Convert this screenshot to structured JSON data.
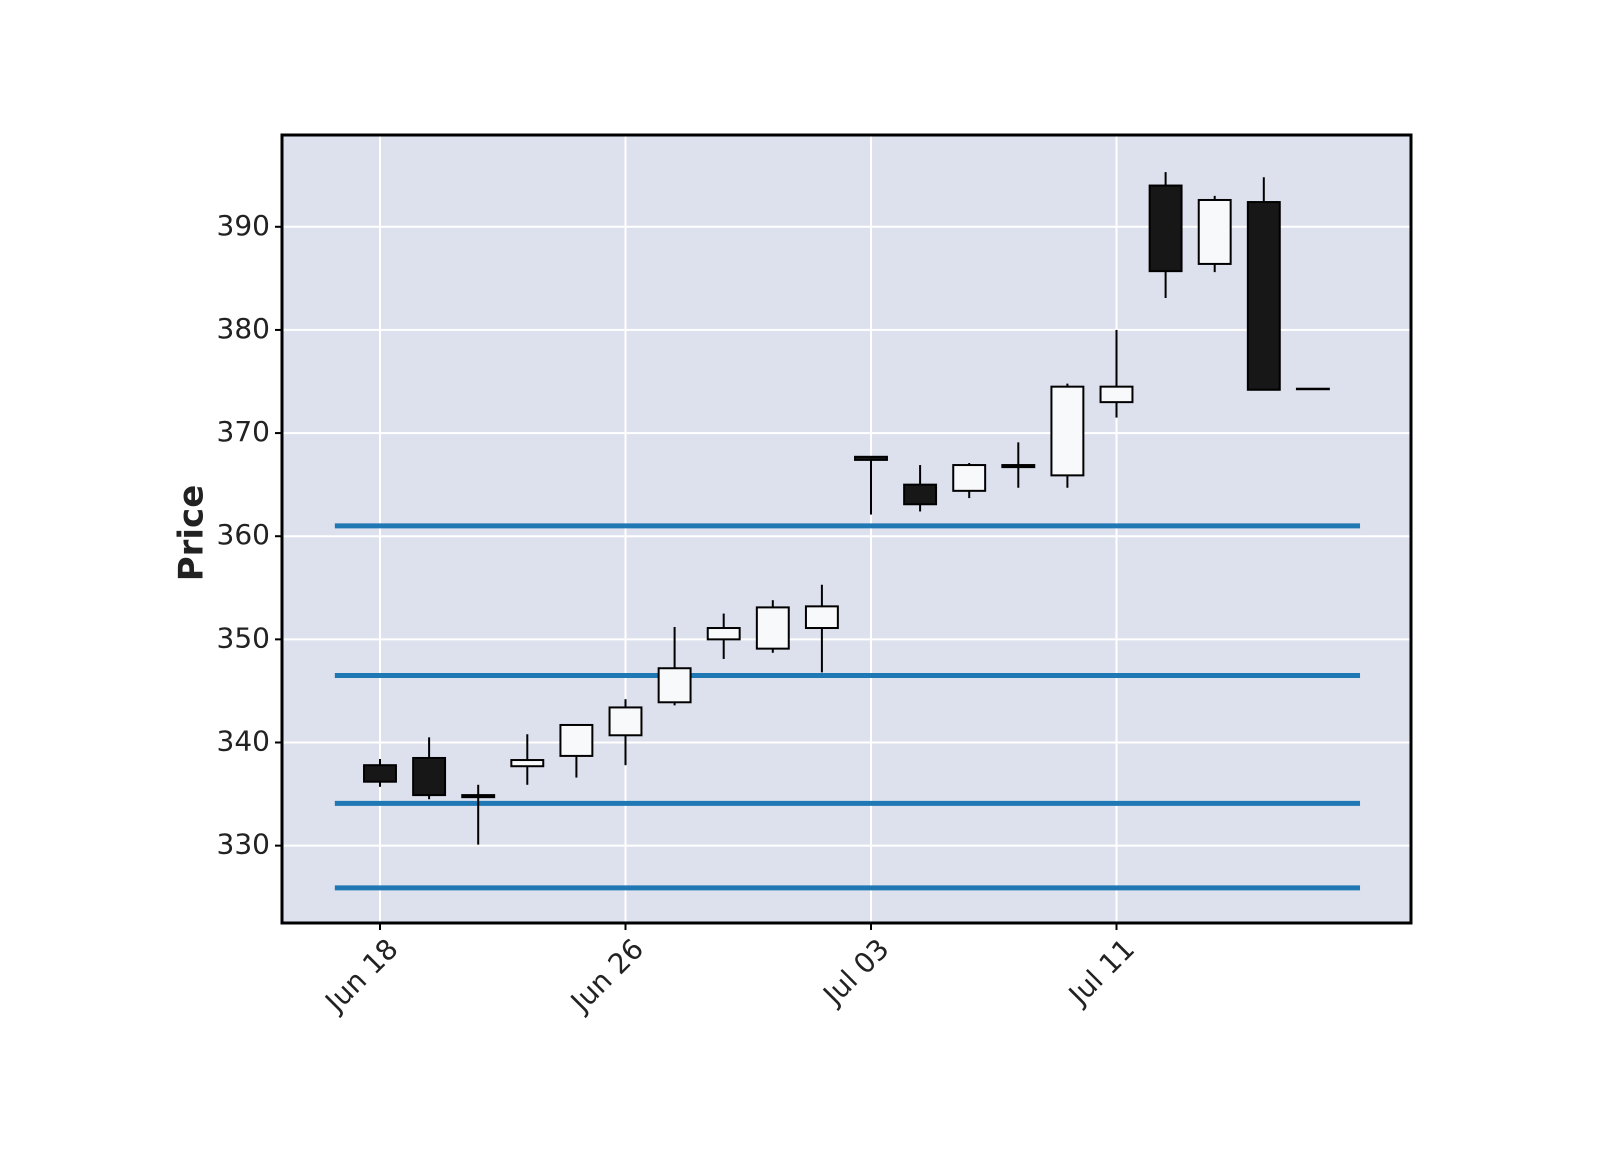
{
  "chart_data": {
    "type": "candlestick",
    "ylabel": "Price",
    "categories": [
      "Jun 18",
      null,
      null,
      null,
      null,
      "Jun 26",
      null,
      null,
      null,
      null,
      "Jul 03",
      null,
      null,
      null,
      null,
      "Jul 11",
      null,
      null,
      null,
      null
    ],
    "open": [
      337.8,
      338.5,
      334.9,
      337.7,
      338.7,
      340.7,
      343.9,
      350.0,
      349.1,
      351.1,
      367.7,
      365.0,
      364.4,
      366.9,
      365.9,
      373.0,
      394.0,
      386.4,
      392.4,
      374.3
    ],
    "high": [
      338.4,
      340.5,
      335.9,
      340.8,
      341.7,
      344.2,
      351.2,
      352.5,
      353.8,
      355.3,
      367.7,
      366.9,
      367.1,
      369.1,
      374.8,
      380.0,
      395.3,
      393.0,
      394.8,
      374.3
    ],
    "low": [
      335.7,
      334.5,
      330.1,
      335.9,
      336.6,
      337.8,
      343.6,
      348.1,
      348.7,
      346.8,
      362.1,
      362.4,
      363.7,
      364.7,
      364.7,
      371.5,
      383.1,
      385.6,
      374.2,
      374.3
    ],
    "close": [
      336.2,
      334.9,
      334.7,
      338.3,
      341.7,
      343.4,
      347.2,
      351.1,
      353.1,
      353.2,
      367.4,
      363.1,
      366.9,
      366.7,
      374.5,
      374.5,
      385.7,
      392.6,
      374.2,
      374.3
    ],
    "up_color": "#f8f9fb",
    "down_color": "#171717",
    "edge_color": "#000000",
    "hlines": {
      "values": [
        361.0,
        346.5,
        334.1,
        325.9
      ],
      "color": "#1f77b4"
    },
    "ylim": [
      322.5,
      398.9
    ],
    "yticks": [
      330,
      340,
      350,
      360,
      370,
      380,
      390
    ],
    "grid": true,
    "background": "#dde1ee"
  }
}
